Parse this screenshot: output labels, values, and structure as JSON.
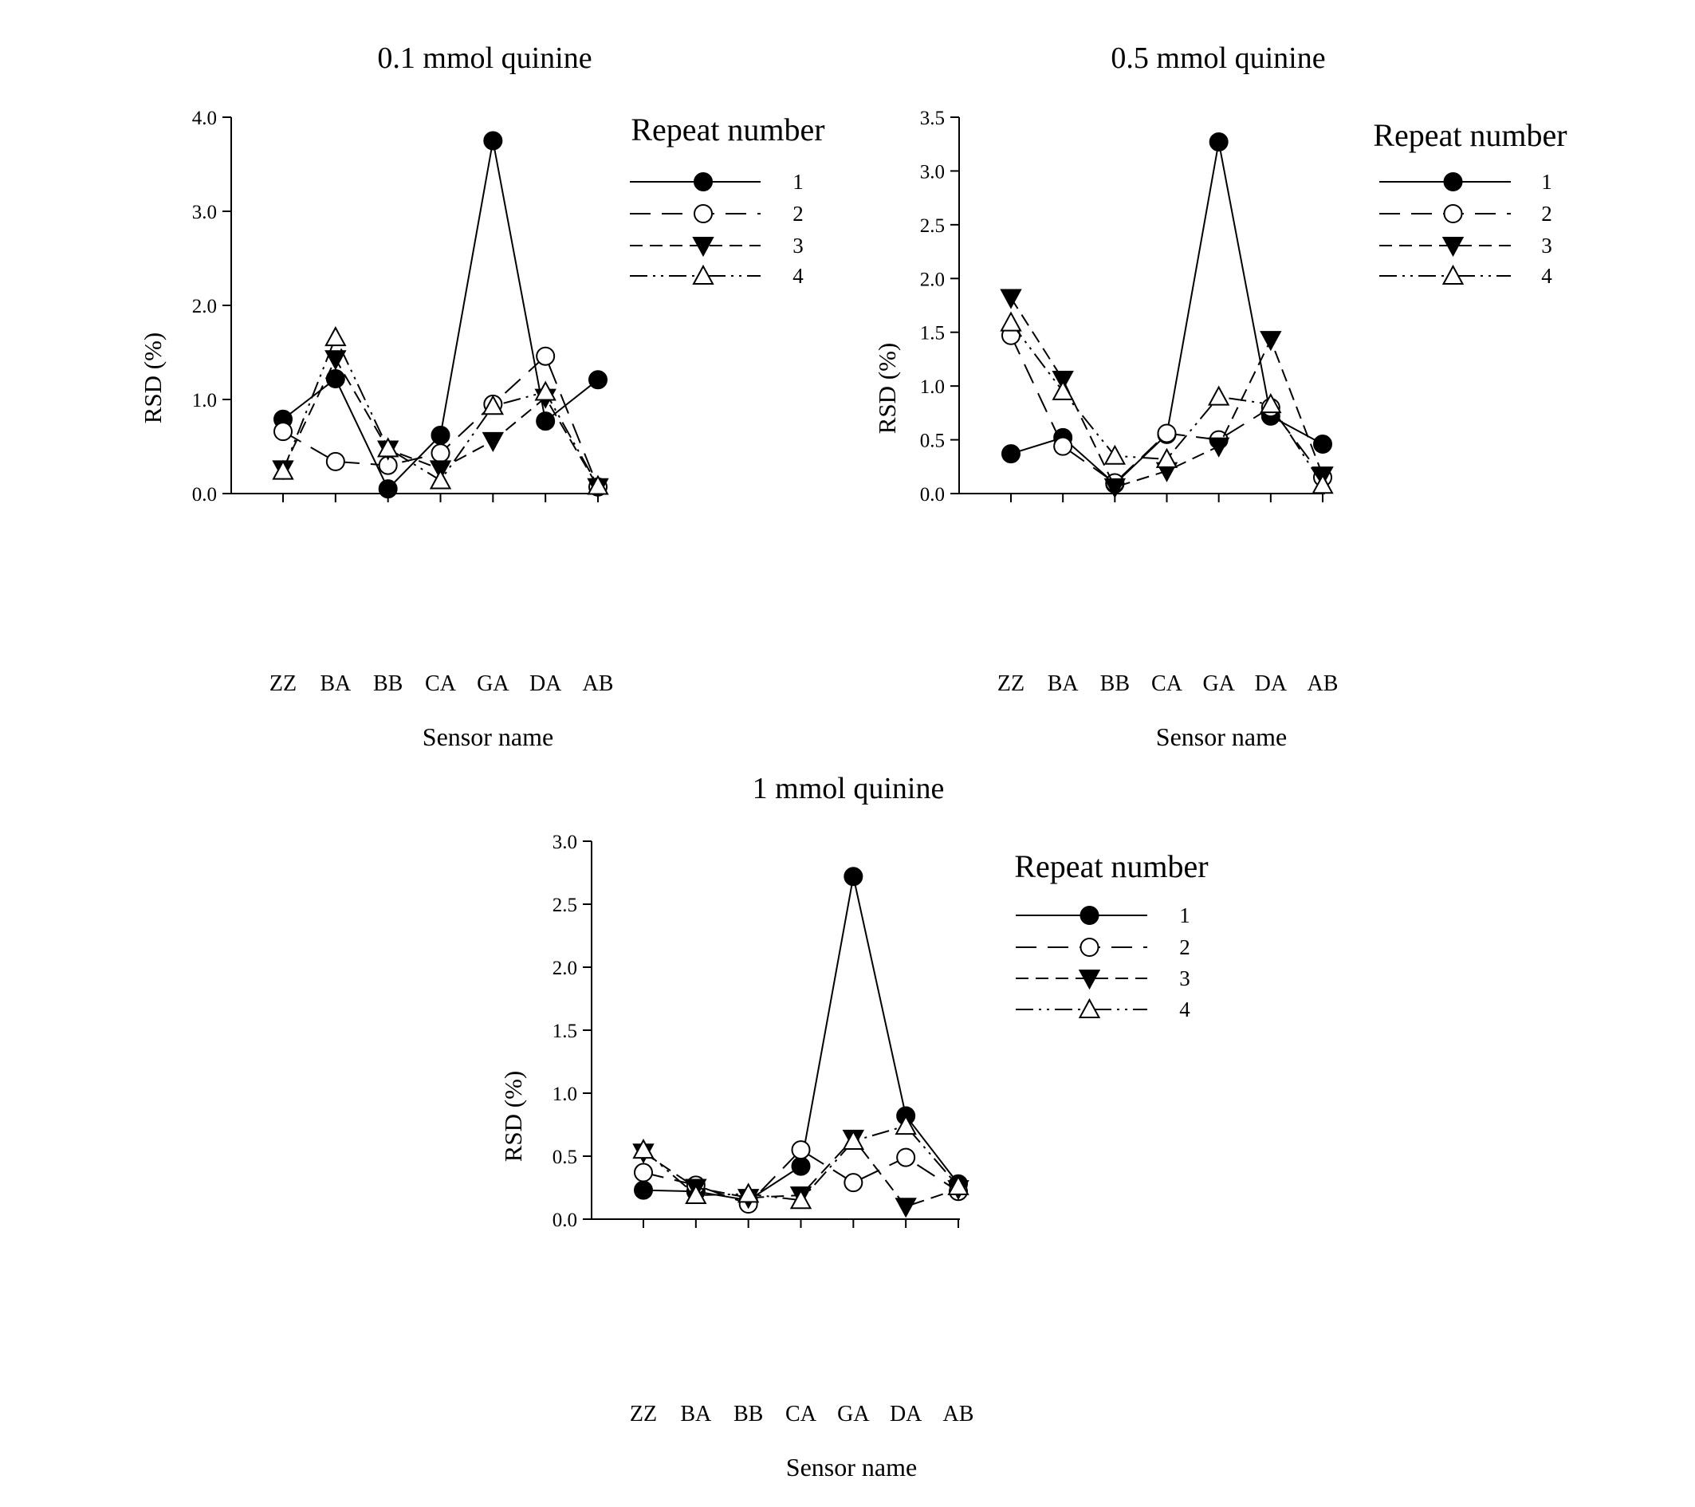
{
  "chart_data": [
    {
      "type": "line",
      "title": "0.1 mmol quinine",
      "xlabel": "Sensor name",
      "ylabel": "RSD (%)",
      "ylim": [
        0,
        4.0
      ],
      "yticks": [
        "0.0",
        "1.0",
        "2.0",
        "3.0",
        "4.0"
      ],
      "ytick_values": [
        0,
        1,
        2,
        3,
        4
      ],
      "categories": [
        "ZZ",
        "BA",
        "BB",
        "CA",
        "GA",
        "DA",
        "AB"
      ],
      "legend_title": "Repeat number",
      "legend_position": "top-right",
      "grid": false,
      "series": [
        {
          "name": "1",
          "marker": "filled-circle",
          "line": "solid",
          "values": [
            0.79,
            1.22,
            0.05,
            0.62,
            3.75,
            0.77,
            1.21
          ]
        },
        {
          "name": "2",
          "marker": "open-circle",
          "line": "long-dash",
          "values": [
            0.66,
            0.34,
            0.3,
            0.43,
            0.95,
            1.46,
            0.07
          ]
        },
        {
          "name": "3",
          "marker": "filled-triangle-down",
          "line": "dash",
          "values": [
            0.26,
            1.43,
            0.47,
            0.26,
            0.56,
            1.02,
            0.07
          ]
        },
        {
          "name": "4",
          "marker": "open-triangle-up",
          "line": "dash-dot-dot",
          "values": [
            0.24,
            1.66,
            0.48,
            0.14,
            0.93,
            1.08,
            0.08
          ]
        }
      ]
    },
    {
      "type": "line",
      "title": "0.5 mmol quinine",
      "xlabel": "Sensor name",
      "ylabel": "RSD (%)",
      "ylim": [
        0,
        3.5
      ],
      "yticks": [
        "0.0",
        "0.5",
        "1.0",
        "1.5",
        "2.0",
        "2.5",
        "3.0",
        "3.5"
      ],
      "ytick_values": [
        0,
        0.5,
        1,
        1.5,
        2,
        2.5,
        3,
        3.5
      ],
      "categories": [
        "ZZ",
        "BA",
        "BB",
        "CA",
        "GA",
        "DA",
        "AB"
      ],
      "legend_title": "Repeat number",
      "legend_position": "top-right",
      "grid": false,
      "series": [
        {
          "name": "1",
          "marker": "filled-circle",
          "line": "solid",
          "values": [
            0.37,
            0.52,
            0.09,
            0.55,
            3.27,
            0.72,
            0.46
          ]
        },
        {
          "name": "2",
          "marker": "open-circle",
          "line": "long-dash",
          "values": [
            1.47,
            0.44,
            0.1,
            0.56,
            0.5,
            0.8,
            0.15
          ]
        },
        {
          "name": "3",
          "marker": "filled-triangle-down",
          "line": "dash",
          "values": [
            1.82,
            1.06,
            0.06,
            0.21,
            0.44,
            1.43,
            0.17
          ]
        },
        {
          "name": "4",
          "marker": "open-triangle-up",
          "line": "dash-dot-dot",
          "values": [
            1.59,
            0.95,
            0.35,
            0.32,
            0.9,
            0.83,
            0.08
          ]
        }
      ]
    },
    {
      "type": "line",
      "title": "1 mmol quinine",
      "xlabel": "Sensor name",
      "ylabel": "RSD (%)",
      "ylim": [
        0,
        3.0
      ],
      "yticks": [
        "0.0",
        "0.5",
        "1.0",
        "1.5",
        "2.0",
        "2.5",
        "3.0"
      ],
      "ytick_values": [
        0,
        0.5,
        1,
        1.5,
        2,
        2.5,
        3
      ],
      "categories": [
        "ZZ",
        "BA",
        "BB",
        "CA",
        "GA",
        "DA",
        "AB"
      ],
      "legend_title": "Repeat number",
      "legend_position": "top-right",
      "grid": false,
      "series": [
        {
          "name": "1",
          "marker": "filled-circle",
          "line": "solid",
          "values": [
            0.23,
            0.22,
            0.15,
            0.42,
            2.72,
            0.82,
            0.28
          ]
        },
        {
          "name": "2",
          "marker": "open-circle",
          "line": "long-dash",
          "values": [
            0.37,
            0.27,
            0.12,
            0.55,
            0.29,
            0.49,
            0.22
          ]
        },
        {
          "name": "3",
          "marker": "filled-triangle-down",
          "line": "dash",
          "values": [
            0.53,
            0.25,
            0.17,
            0.19,
            0.64,
            0.1,
            0.24
          ]
        },
        {
          "name": "4",
          "marker": "open-triangle-up",
          "line": "dash-dot-dot",
          "values": [
            0.55,
            0.19,
            0.2,
            0.15,
            0.62,
            0.74,
            0.26
          ]
        }
      ]
    }
  ]
}
